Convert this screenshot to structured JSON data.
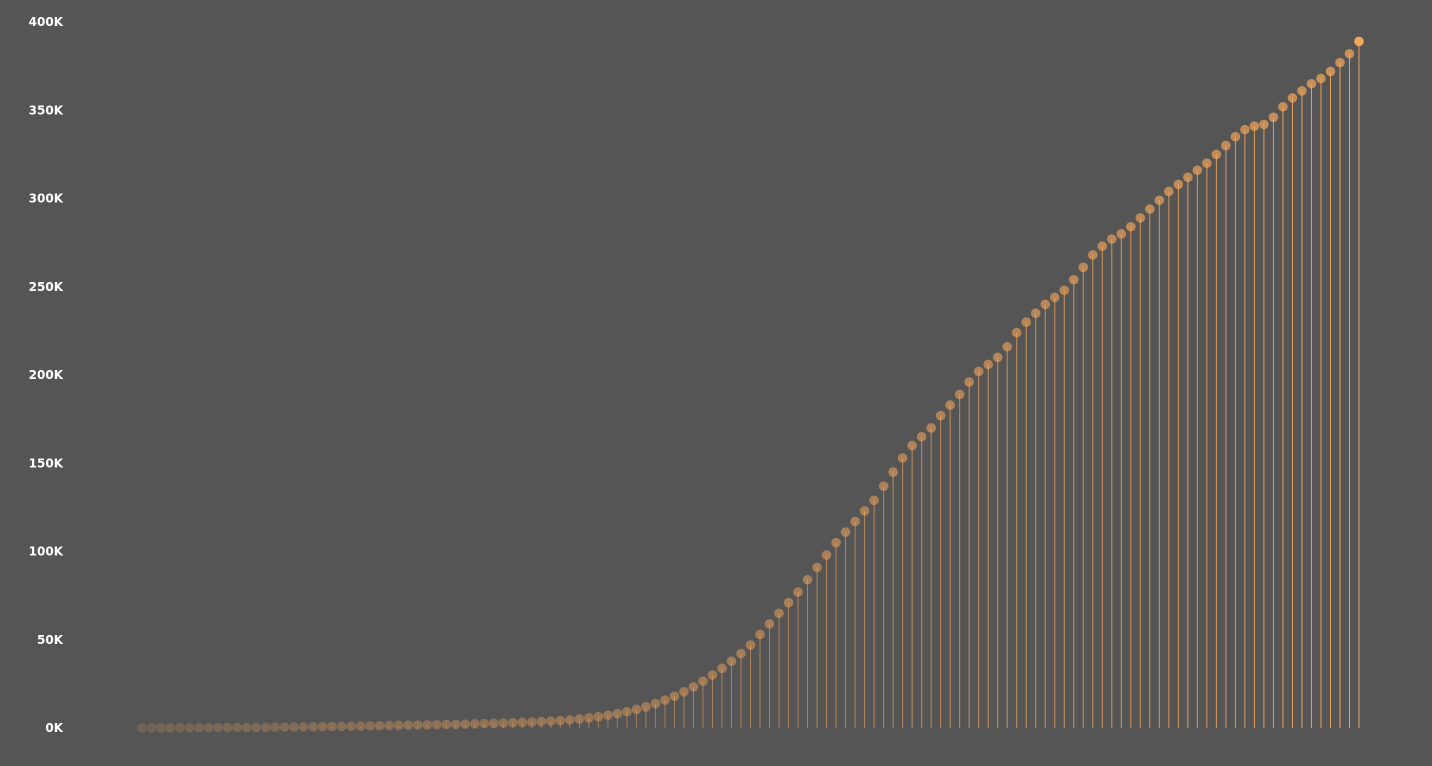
{
  "chart_data": {
    "type": "lollipop",
    "title": "",
    "xlabel": "",
    "ylabel": "",
    "ylim": [
      0,
      400000
    ],
    "grid": false,
    "legend": "none",
    "y_ticks": [
      {
        "value": 0,
        "label": "0K"
      },
      {
        "value": 50000,
        "label": "50K"
      },
      {
        "value": 100000,
        "label": "100K"
      },
      {
        "value": 150000,
        "label": "150K"
      },
      {
        "value": 200000,
        "label": "200K"
      },
      {
        "value": 250000,
        "label": "250K"
      },
      {
        "value": 300000,
        "label": "300K"
      },
      {
        "value": 350000,
        "label": "350K"
      },
      {
        "value": 400000,
        "label": "400K"
      }
    ],
    "colors": {
      "background": "#555555",
      "mark": "#f4a65b",
      "stem": "#f4a65b"
    },
    "series": [
      {
        "values": [
          20,
          40,
          60,
          80,
          100,
          120,
          150,
          180,
          210,
          240,
          280,
          320,
          360,
          400,
          450,
          500,
          560,
          620,
          690,
          760,
          840,
          920,
          1000,
          1100,
          1200,
          1300,
          1400,
          1500,
          1600,
          1700,
          1800,
          1900,
          2000,
          2100,
          2200,
          2350,
          2500,
          2650,
          2800,
          3000,
          3200,
          3400,
          3600,
          3900,
          4200,
          4600,
          5100,
          5700,
          6400,
          7200,
          8100,
          9200,
          10500,
          12000,
          13800,
          15800,
          18000,
          20500,
          23300,
          26500,
          30000,
          33800,
          37800,
          42200,
          47000,
          53000,
          59000,
          65000,
          71000,
          77000,
          84000,
          91000,
          98000,
          105000,
          111000,
          117000,
          123000,
          129000,
          137000,
          145000,
          153000,
          160000,
          165000,
          170000,
          177000,
          183000,
          189000,
          196000,
          202000,
          206000,
          210000,
          216000,
          224000,
          230000,
          235000,
          240000,
          244000,
          248000,
          254000,
          261000,
          268000,
          273000,
          277000,
          280000,
          284000,
          289000,
          294000,
          299000,
          304000,
          308000,
          312000,
          316000,
          320000,
          325000,
          330000,
          335000,
          339000,
          341000,
          342000,
          346000,
          352000,
          357000,
          361000,
          365000,
          368000,
          372000,
          377000,
          382000,
          389000
        ]
      }
    ]
  }
}
